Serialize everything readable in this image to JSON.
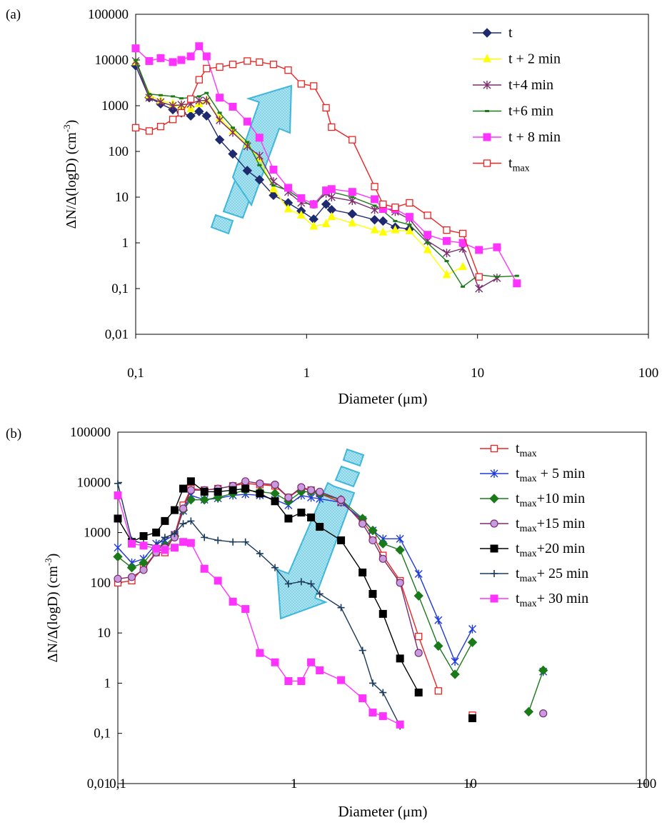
{
  "chart_data": [
    {
      "panel_label": "(a)",
      "type": "line",
      "xscale": "log",
      "yscale": "log",
      "xlim": [
        0.1,
        100
      ],
      "ylim": [
        0.01,
        100000
      ],
      "xlabel": "Diameter (μm)",
      "ylabel": "ΔN/Δ(logD) (cm",
      "ylabel_sup": "-3",
      "ylabel_end": ")",
      "xticks": [
        0.1,
        1,
        10,
        100
      ],
      "xtick_labels": [
        "0,1",
        "1",
        "10",
        "100"
      ],
      "yticks": [
        0.01,
        0.1,
        1,
        10,
        100,
        1000,
        10000,
        100000
      ],
      "ytick_labels": [
        "0,01",
        "0,1",
        "1",
        "10",
        "100",
        "1000",
        "10000",
        "100000"
      ],
      "legend_position": "top-right",
      "annotation": "arrow pointing up",
      "series": [
        {
          "name": "t",
          "sub": "",
          "rest": "",
          "color": "#1f2a6e",
          "marker": "diamond",
          "x": [
            0.1,
            0.12,
            0.14,
            0.165,
            0.185,
            0.21,
            0.235,
            0.26,
            0.31,
            0.37,
            0.45,
            0.53,
            0.64,
            0.78,
            0.93,
            1.1,
            1.3,
            1.4,
            1.85,
            2.5,
            2.8,
            3.3,
            4.0
          ],
          "y": [
            7500,
            1500,
            1100,
            820,
            700,
            600,
            750,
            600,
            180,
            88,
            38,
            24,
            11,
            7.5,
            5,
            3.3,
            7,
            5.3,
            4.3,
            3.2,
            3,
            2.2,
            2
          ]
        },
        {
          "name": "t + 2 min",
          "sub": "",
          "rest": "",
          "color": "#ffff00",
          "marker": "triangle",
          "x": [
            0.1,
            0.12,
            0.14,
            0.165,
            0.185,
            0.21,
            0.235,
            0.26,
            0.31,
            0.37,
            0.45,
            0.53,
            0.64,
            0.78,
            0.93,
            1.1,
            1.3,
            1.4,
            1.85,
            2.5,
            2.8,
            3.3,
            4.0,
            5.1,
            6.6,
            8.2
          ],
          "y": [
            9000,
            1700,
            1300,
            1100,
            1000,
            850,
            1100,
            1300,
            530,
            280,
            140,
            70,
            15,
            5.5,
            4,
            2.3,
            2.6,
            3.7,
            2.7,
            1.9,
            1.7,
            1.9,
            1.8,
            0.7,
            0.2,
            0.3
          ]
        },
        {
          "name": "t+4 min",
          "sub": "",
          "rest": "",
          "color": "#7b2d6e",
          "marker": "asterisk",
          "x": [
            0.1,
            0.12,
            0.14,
            0.165,
            0.185,
            0.21,
            0.235,
            0.26,
            0.31,
            0.37,
            0.45,
            0.53,
            0.64,
            0.78,
            0.93,
            1.1,
            1.3,
            1.4,
            1.85,
            2.5,
            2.8,
            3.3,
            4.0,
            5.1,
            6.6,
            8.2,
            10.2,
            13
          ],
          "y": [
            9500,
            1500,
            1200,
            1000,
            1050,
            1100,
            1300,
            1300,
            480,
            260,
            130,
            80,
            22,
            13,
            7.5,
            7,
            12,
            10,
            8.3,
            5.3,
            6,
            4.8,
            3.3,
            1.1,
            0.6,
            0.75,
            0.1,
            0.17
          ]
        },
        {
          "name": "t+6 min",
          "sub": "",
          "rest": "",
          "color": "#1a7a1a",
          "marker": "dash",
          "x": [
            0.1,
            0.12,
            0.14,
            0.165,
            0.185,
            0.21,
            0.235,
            0.26,
            0.31,
            0.37,
            0.45,
            0.53,
            0.64,
            0.78,
            0.93,
            1.1,
            1.3,
            1.4,
            1.85,
            2.5,
            2.8,
            3.3,
            4.0,
            5.1,
            6.6,
            8.2,
            10.2,
            13,
            17
          ],
          "y": [
            10000,
            1800,
            1700,
            1600,
            1450,
            1500,
            1600,
            1900,
            700,
            330,
            160,
            50,
            18,
            14,
            9,
            6,
            14,
            13,
            10,
            6.5,
            5,
            3,
            2.5,
            1,
            0.4,
            0.11,
            0.2,
            0.18,
            0.19
          ]
        },
        {
          "name": "t + 8 min",
          "sub": "",
          "rest": "",
          "color": "#ff33ff",
          "marker": "square",
          "x": [
            0.1,
            0.12,
            0.14,
            0.165,
            0.185,
            0.21,
            0.235,
            0.26,
            0.31,
            0.37,
            0.45,
            0.53,
            0.64,
            0.78,
            0.93,
            1.1,
            1.3,
            1.4,
            1.85,
            2.5,
            2.8,
            3.3,
            4.0,
            5.1,
            6.6,
            8.2,
            10.2,
            13,
            17
          ],
          "y": [
            18000,
            9500,
            11000,
            9000,
            10000,
            12000,
            20000,
            12000,
            1500,
            950,
            450,
            200,
            40,
            16,
            9.5,
            7,
            14,
            15,
            13,
            9,
            5.5,
            5.5,
            3.7,
            1.5,
            1.1,
            1,
            0.7,
            0.8,
            0.13
          ]
        },
        {
          "name": "t",
          "sub": "max",
          "rest": "",
          "color": "#ee2222",
          "marker": "square-open",
          "x": [
            0.1,
            0.12,
            0.14,
            0.165,
            0.185,
            0.21,
            0.235,
            0.26,
            0.31,
            0.37,
            0.45,
            0.53,
            0.64,
            0.78,
            0.93,
            1.1,
            1.3,
            1.4,
            1.85,
            2.5,
            2.8,
            3.3,
            4.0,
            5.1,
            6.6,
            8.2,
            10.2
          ],
          "y": [
            330,
            280,
            350,
            500,
            700,
            1400,
            3700,
            6500,
            7000,
            8000,
            9500,
            9000,
            8000,
            6000,
            3000,
            2700,
            900,
            340,
            180,
            17,
            7,
            6,
            7.5,
            4,
            1.9,
            1.6,
            0.18
          ]
        }
      ]
    },
    {
      "panel_label": "(b)",
      "type": "line",
      "xscale": "log",
      "yscale": "log",
      "xlim": [
        0.1,
        100
      ],
      "ylim": [
        0.01,
        100000
      ],
      "xlabel": "Diameter (μm)",
      "ylabel": "ΔN/Δ(logD) (cm",
      "ylabel_sup": "-3",
      "ylabel_end": ")",
      "xticks": [
        0.1,
        1,
        10,
        100
      ],
      "xtick_labels": [
        "0,1",
        "1",
        "10",
        "100"
      ],
      "yticks": [
        0.01,
        0.1,
        1,
        10,
        100,
        1000,
        10000,
        100000
      ],
      "ytick_labels": [
        "0,01",
        "0,1",
        "1",
        "10",
        "100",
        "1000",
        "10000",
        "100000"
      ],
      "legend_position": "top-right",
      "annotation": "arrow pointing down",
      "series": [
        {
          "name": "t",
          "sub": "max",
          "rest": "",
          "color": "#ee2222",
          "marker": "square-open",
          "x": [
            0.1,
            0.12,
            0.14,
            0.165,
            0.185,
            0.21,
            0.235,
            0.26,
            0.31,
            0.37,
            0.45,
            0.53,
            0.64,
            0.78,
            0.93,
            1.1,
            1.25,
            1.4,
            1.85,
            2.45,
            2.8,
            3.2,
            4.0,
            5.1,
            6.6
          ],
          "y": [
            100,
            110,
            200,
            400,
            400,
            900,
            3500,
            7500,
            7000,
            7500,
            8500,
            9500,
            9000,
            8500,
            5000,
            7500,
            7000,
            6000,
            4000,
            1700,
            900,
            350,
            110,
            8.5,
            0.7
          ],
          "y2": [
            0.23
          ],
          "x2": [
            10.3
          ]
        },
        {
          "name": "t",
          "sub": "max",
          "rest": " + 5 min",
          "color": "#1e3ad8",
          "marker": "asterisk",
          "x": [
            0.1,
            0.12,
            0.14,
            0.165,
            0.185,
            0.21,
            0.235,
            0.26,
            0.31,
            0.37,
            0.45,
            0.53,
            0.64,
            0.78,
            0.93,
            1.1,
            1.25,
            1.4,
            1.85,
            2.45,
            2.8,
            3.2,
            4.0,
            5.1,
            6.6,
            8.2,
            10.3
          ],
          "y": [
            500,
            250,
            300,
            600,
            700,
            900,
            2700,
            5500,
            4500,
            4800,
            5500,
            5800,
            5500,
            4500,
            3500,
            5500,
            5000,
            4700,
            4000,
            1800,
            1100,
            750,
            750,
            150,
            18,
            2.7,
            12
          ],
          "y2": [
            1.7
          ],
          "x2": [
            26
          ]
        },
        {
          "name": "t",
          "sub": "max",
          "rest": "+10 min",
          "color": "#1a7a1a",
          "marker": "diamond",
          "x": [
            0.1,
            0.12,
            0.14,
            0.165,
            0.185,
            0.21,
            0.235,
            0.26,
            0.31,
            0.37,
            0.45,
            0.53,
            0.64,
            0.78,
            0.93,
            1.1,
            1.25,
            1.4,
            1.85,
            2.45,
            2.8,
            3.2,
            4.0,
            5.1,
            6.6,
            8.2,
            10.3
          ],
          "y": [
            330,
            200,
            250,
            500,
            550,
            850,
            2800,
            4500,
            4500,
            5000,
            6000,
            7000,
            6500,
            6000,
            4200,
            6500,
            6500,
            6000,
            4500,
            1900,
            1100,
            600,
            450,
            55,
            5.5,
            1.5,
            6.5
          ],
          "y2": [
            0.27,
            1.8
          ],
          "x2": [
            21.5,
            26
          ]
        },
        {
          "name": "t",
          "sub": "max",
          "rest": "+15 min",
          "color": "#7b2d6e",
          "marker": "circle",
          "x": [
            0.1,
            0.12,
            0.14,
            0.165,
            0.185,
            0.21,
            0.235,
            0.26,
            0.31,
            0.37,
            0.45,
            0.53,
            0.64,
            0.78,
            0.93,
            1.1,
            1.25,
            1.4,
            1.85,
            2.45,
            2.8,
            3.2,
            4.0,
            5.1
          ],
          "y": [
            120,
            130,
            180,
            400,
            500,
            800,
            3000,
            7000,
            7000,
            7500,
            8500,
            10500,
            9500,
            9000,
            5000,
            8000,
            7000,
            6500,
            4500,
            1500,
            700,
            300,
            100,
            4
          ],
          "y2": [
            0.25
          ],
          "x2": [
            26
          ]
        },
        {
          "name": "t",
          "sub": "max",
          "rest": "+20 min",
          "color": "#000000",
          "marker": "square",
          "x": [
            0.1,
            0.12,
            0.14,
            0.165,
            0.185,
            0.21,
            0.235,
            0.26,
            0.31,
            0.37,
            0.45,
            0.53,
            0.64,
            0.78,
            0.93,
            1.1,
            1.25,
            1.4,
            1.85,
            2.45,
            2.8,
            3.2,
            4.0,
            5.1
          ],
          "y": [
            1900,
            650,
            850,
            1000,
            1700,
            2800,
            7500,
            10500,
            6500,
            6500,
            7000,
            7500,
            6000,
            4200,
            1900,
            2500,
            2000,
            1300,
            700,
            160,
            60,
            24,
            3.1,
            0.65
          ],
          "y2": [
            0.2
          ],
          "x2": [
            10.3
          ]
        },
        {
          "name": "t",
          "sub": "max",
          "rest": "+ 25 min",
          "color": "#1b3a5c",
          "marker": "plus",
          "x": [
            0.1,
            0.12,
            0.14,
            0.165,
            0.185,
            0.21,
            0.235,
            0.26,
            0.31,
            0.37,
            0.45,
            0.53,
            0.64,
            0.78,
            0.93,
            1.1,
            1.25,
            1.4,
            1.85,
            2.45,
            2.8,
            3.2,
            4.0
          ],
          "y": [
            9500,
            700,
            600,
            550,
            800,
            950,
            1500,
            1700,
            800,
            700,
            650,
            650,
            380,
            200,
            95,
            105,
            95,
            60,
            32,
            4.5,
            1,
            0.65,
            0.14
          ]
        },
        {
          "name": "t",
          "sub": "max",
          "rest": "+ 30 min",
          "color": "#ff33ff",
          "marker": "square",
          "x": [
            0.1,
            0.12,
            0.14,
            0.165,
            0.185,
            0.21,
            0.235,
            0.26,
            0.31,
            0.37,
            0.45,
            0.53,
            0.64,
            0.78,
            0.93,
            1.1,
            1.25,
            1.4,
            1.85,
            2.45,
            2.8,
            3.2,
            4.0
          ],
          "y": [
            5500,
            600,
            550,
            480,
            450,
            500,
            650,
            620,
            190,
            110,
            42,
            30,
            4,
            2.6,
            1.1,
            1.1,
            2.6,
            1.8,
            1.15,
            0.5,
            0.26,
            0.22,
            0.15
          ]
        }
      ]
    }
  ]
}
